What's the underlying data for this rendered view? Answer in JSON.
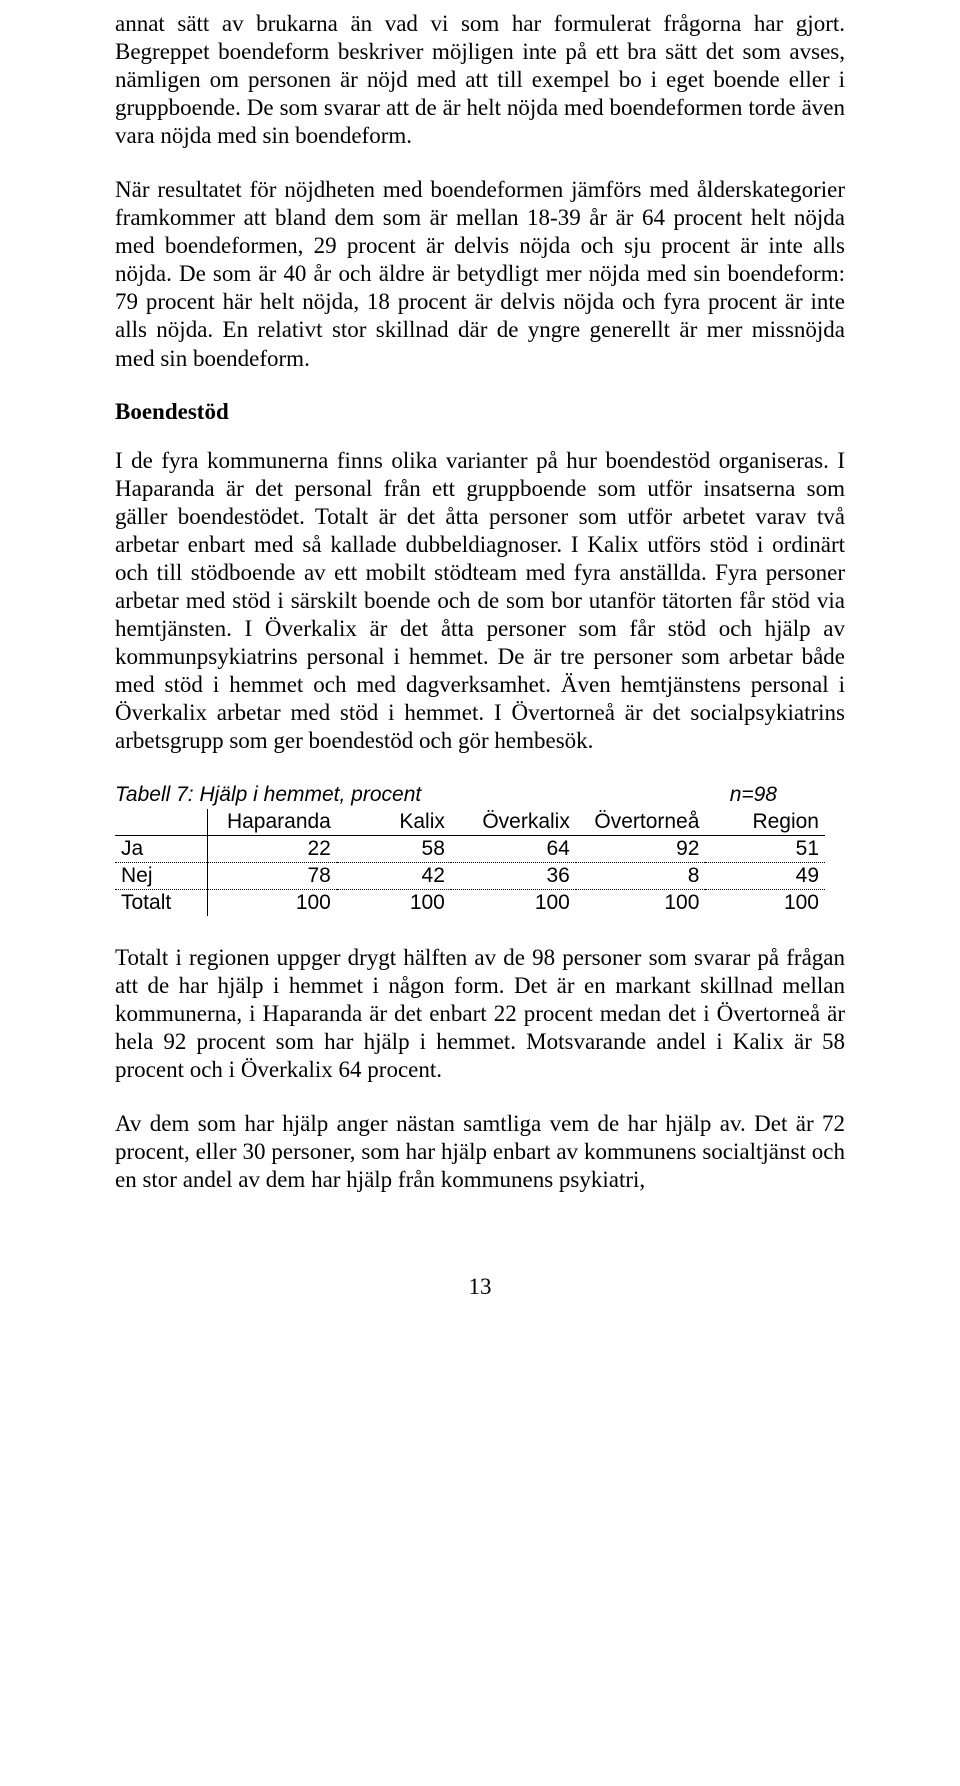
{
  "para1": "annat sätt av brukarna än vad vi som har formulerat frågorna har gjort. Begreppet boendeform beskriver möjligen inte på ett bra sätt det som avses, nämligen om personen är nöjd med att till exempel bo i eget boende eller i gruppboende. De som svarar att de är helt nöjda med boendeformen torde även vara nöjda med sin boendeform.",
  "para2": "När resultatet för nöjdheten med boendeformen jämförs med ålderskategorier framkommer att bland dem som är mellan 18-39 år är 64 procent helt nöjda med boendeformen, 29 procent är delvis nöjda och sju procent är inte alls nöjda. De som är 40 år och äldre är betydligt mer nöjda med sin boendeform: 79 procent här helt nöjda, 18 procent är delvis nöjda och fyra procent är inte alls nöjda. En relativt stor skillnad där de yngre generellt är mer missnöjda med sin boendeform.",
  "heading1": "Boendestöd",
  "para3": "I de fyra kommunerna finns olika varianter på hur boendestöd organiseras. I Haparanda är det personal från ett gruppboende som utför insatserna som gäller boendestödet. Totalt är det åtta personer som utför arbetet varav två arbetar enbart med så kallade dubbeldiagnoser. I Kalix utförs stöd i ordinärt och till stödboende av ett mobilt stödteam med fyra anställda. Fyra personer arbetar med stöd i särskilt boende och de som bor utanför tätorten får stöd via hemtjänsten. I Överkalix är det åtta personer som får stöd och hjälp av kommunpsykiatrins personal i hemmet. De är tre personer som arbetar både med stöd i hemmet och med dagverksamhet. Även hemtjänstens personal i Överkalix arbetar med stöd i hemmet. I Övertorneå är det socialpsykiatrins arbetsgrupp som ger boendestöd och gör hembesök.",
  "table7": {
    "title_left": "Tabell 7: Hjälp i hemmet, procent",
    "title_right": "n=98",
    "columns": [
      "Haparanda",
      "Kalix",
      "Överkalix",
      "Övertorneå",
      "Region"
    ],
    "rows": [
      {
        "label": "Ja",
        "values": [
          "22",
          "58",
          "64",
          "92",
          "51"
        ]
      },
      {
        "label": "Nej",
        "values": [
          "78",
          "42",
          "36",
          "8",
          "49"
        ]
      },
      {
        "label": "Totalt",
        "values": [
          "100",
          "100",
          "100",
          "100",
          "100"
        ]
      }
    ]
  },
  "para4": "Totalt i regionen uppger drygt hälften av de 98 personer som svarar på frågan att de har hjälp i hemmet i någon form. Det är en markant skillnad mellan kommunerna, i Haparanda är det enbart 22 procent medan det i Övertorneå är hela 92 procent som har hjälp i hemmet. Motsvarande andel i Kalix är 58 procent och i Överkalix 64 procent.",
  "para5": "Av dem som har hjälp anger nästan samtliga vem de har hjälp av. Det är 72 procent, eller 30 personer, som har hjälp enbart av kommunens socialtjänst och en stor andel av dem har hjälp från kommunens psykiatri,",
  "page_number": "13"
}
